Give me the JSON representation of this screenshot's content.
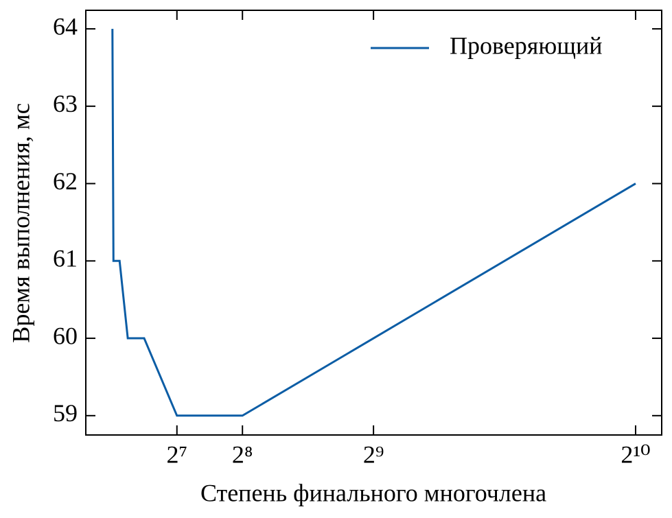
{
  "chart_data": {
    "type": "line",
    "xlabel": "Степень финального многочлена",
    "ylabel": "Время выполнения, мс",
    "x": [
      2,
      4,
      8,
      16,
      32,
      64,
      128,
      256,
      512,
      1024
    ],
    "series": [
      {
        "name": "Проверяющий",
        "color": "#0c5da5",
        "values": [
          64,
          61,
          61,
          61,
          60,
          60,
          59,
          59,
          60,
          62
        ]
      }
    ],
    "xlim": [
      -50,
      1075
    ],
    "ylim": [
      58.75,
      64.24
    ],
    "xticks": [
      {
        "value": 128,
        "label": "2⁷"
      },
      {
        "value": 256,
        "label": "2⁸"
      },
      {
        "value": 512,
        "label": "2⁹"
      },
      {
        "value": 1024,
        "label": "2¹⁰"
      }
    ],
    "yticks": [
      59,
      60,
      61,
      62,
      63,
      64
    ],
    "legend": "upper right"
  }
}
